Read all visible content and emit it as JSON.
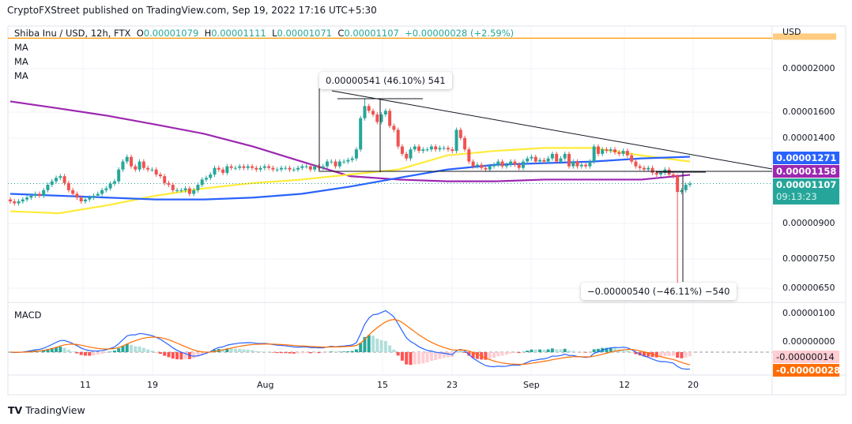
{
  "published": "CryptoFXStreet published on TradingView.com, Sep 19, 2022 17:16 UTC+5:30",
  "legend": {
    "symbol": "Shiba Inu / USD, 12h, FTX",
    "o_label": "O",
    "open": "0.00001079",
    "h_label": "H",
    "high": "0.00001111",
    "l_label": "L",
    "low": "0.00001071",
    "c_label": "C",
    "close": "0.00001107",
    "change": "+0.00000028 (+2.59%)"
  },
  "indicators": [
    "MA",
    "MA",
    "MA"
  ],
  "macd_label": "MACD",
  "price_axis": {
    "currency": "USD",
    "ticks": [
      "0.00002000",
      "0.00001600",
      "0.00001400",
      "0.00000900",
      "0.00000750",
      "0.00000650"
    ],
    "scale": "log",
    "tags": {
      "ma_blue": "0.00001271",
      "ma_purple": "0.00001158",
      "last": "0.00001107",
      "countdown": "09:13:23"
    }
  },
  "macd_axis": {
    "ticks": [
      "0.00000100",
      "0.00000000"
    ],
    "tags": {
      "histogram": "-0.00000014",
      "signal": "-0.00000028"
    }
  },
  "time_axis": [
    "11",
    "19",
    "Aug",
    "15",
    "23",
    "Sep",
    "12",
    "20"
  ],
  "annotations": {
    "rise": "0.00000541 (46.10%) 541",
    "drop": "−0.00000540 (−46.11%) −540"
  },
  "footer": "TradingView",
  "colors": {
    "up": "#26a69a",
    "down": "#ef5350",
    "ma_purple": "#9c27b0",
    "ma_blue": "#2962ff",
    "ma_yellow": "#ffeb3b",
    "macd": "#2962ff",
    "signal": "#ff6d00",
    "hline": "#ff9800"
  },
  "chart_data": {
    "type": "candlestick",
    "series_close": [
      1.01e-05,
      1e-05,
      1.01e-05,
      1.02e-05,
      1.03e-05,
      1.04e-05,
      1.05e-05,
      1.04e-05,
      1.07e-05,
      1.1e-05,
      1.12e-05,
      1.14e-05,
      1.15e-05,
      1.11e-05,
      1.07e-05,
      1.05e-05,
      1.03e-05,
      1.01e-05,
      1.02e-05,
      1.03e-05,
      1.04e-05,
      1.05e-05,
      1.07e-05,
      1.08e-05,
      1.107e-05,
      1.12e-05,
      1.19e-05,
      1.24e-05,
      1.27e-05,
      1.21e-05,
      1.19e-05,
      1.24e-05,
      1.2e-05,
      1.19e-05,
      1.19e-05,
      1.16e-05,
      1.15e-05,
      1.11e-05,
      1.1e-05,
      1.07e-05,
      1.07e-05,
      1.07e-05,
      1.08e-05,
      1.05e-05,
      1.07e-05,
      1.1e-05,
      1.13e-05,
      1.14e-05,
      1.16e-05,
      1.2e-05,
      1.19e-05,
      1.17e-05,
      1.21e-05,
      1.2e-05,
      1.2e-05,
      1.21e-05,
      1.2e-05,
      1.21e-05,
      1.2e-05,
      1.19e-05,
      1.2e-05,
      1.21e-05,
      1.2e-05,
      1.19e-05,
      1.19e-05,
      1.2e-05,
      1.2e-05,
      1.19e-05,
      1.19e-05,
      1.2e-05,
      1.21e-05,
      1.21e-05,
      1.19e-05,
      1.21e-05,
      1.2e-05,
      1.21e-05,
      1.24e-05,
      1.24e-05,
      1.21e-05,
      1.24e-05,
      1.24e-05,
      1.25e-05,
      1.26e-05,
      1.32e-05,
      1.55e-05,
      1.65e-05,
      1.61e-05,
      1.58e-05,
      1.52e-05,
      1.58e-05,
      1.61e-05,
      1.49e-05,
      1.46e-05,
      1.34e-05,
      1.29e-05,
      1.26e-05,
      1.32e-05,
      1.34e-05,
      1.31e-05,
      1.32e-05,
      1.32e-05,
      1.34e-05,
      1.32e-05,
      1.33e-05,
      1.33e-05,
      1.32e-05,
      1.31e-05,
      1.46e-05,
      1.4e-05,
      1.32e-05,
      1.24e-05,
      1.21e-05,
      1.22e-05,
      1.2e-05,
      1.19e-05,
      1.21e-05,
      1.22e-05,
      1.24e-05,
      1.21e-05,
      1.22e-05,
      1.24e-05,
      1.22e-05,
      1.2e-05,
      1.24e-05,
      1.26e-05,
      1.27e-05,
      1.24e-05,
      1.25e-05,
      1.24e-05,
      1.26e-05,
      1.29e-05,
      1.24e-05,
      1.26e-05,
      1.29e-05,
      1.21e-05,
      1.24e-05,
      1.21e-05,
      1.22e-05,
      1.21e-05,
      1.24e-05,
      1.34e-05,
      1.29e-05,
      1.32e-05,
      1.31e-05,
      1.32e-05,
      1.3e-05,
      1.29e-05,
      1.31e-05,
      1.28e-05,
      1.24e-05,
      1.21e-05,
      1.2e-05,
      1.19e-05,
      1.2e-05,
      1.17e-05,
      1.16e-05,
      1.17e-05,
      1.19e-05,
      1.16e-05,
      1.15e-05,
      1.06e-05,
      1.07e-05,
      1.1e-05,
      1.107e-05
    ],
    "extremes": [
      {
        "candle": 85,
        "high": 1.715e-05
      },
      {
        "candle": 160,
        "low": 6.31e-06
      }
    ],
    "moving_averages": {
      "purple": [
        1.69e-05,
        1.63e-05,
        1.57e-05,
        1.5e-05,
        1.43e-05,
        1.34e-05,
        1.24e-05,
        1.15e-05,
        1.13e-05,
        1.12e-05,
        1.12e-05,
        1.13e-05,
        1.13e-05,
        1.13e-05,
        1.158e-05
      ],
      "blue": [
        1.05e-05,
        1.04e-05,
        1.03e-05,
        1.02e-05,
        1.02e-05,
        1.03e-05,
        1.05e-05,
        1.09e-05,
        1.14e-05,
        1.19e-05,
        1.22e-05,
        1.23e-05,
        1.24e-05,
        1.26e-05,
        1.271e-05
      ],
      "yellow": [
        9.6e-06,
        9.5e-06,
        9.9e-06,
        1.04e-05,
        1.08e-05,
        1.11e-05,
        1.13e-05,
        1.16e-05,
        1.19e-05,
        1.28e-05,
        1.31e-05,
        1.33e-05,
        1.33e-05,
        1.28e-05,
        1.24e-05
      ]
    },
    "horizontal_line": 2.34e-05
  }
}
